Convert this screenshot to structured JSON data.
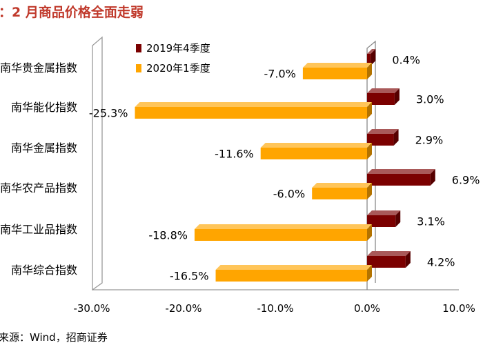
{
  "title": "：2 月商品价格全面走弱",
  "source": "来源：Wind，招商证券",
  "chart_data": {
    "type": "bar",
    "orientation": "horizontal",
    "categories": [
      "南华贵金属指数",
      "南华能化指数",
      "南华金属指数",
      "南华农产品指数",
      "南华工业品指数",
      "南华综合指数"
    ],
    "series": [
      {
        "name": "2019年4季度",
        "values": [
          0.4,
          3.0,
          2.9,
          6.9,
          3.1,
          4.2
        ],
        "labels": [
          "0.4%",
          "3.0%",
          "2.9%",
          "6.9%",
          "3.1%",
          "4.2%"
        ],
        "color": "#7b0000"
      },
      {
        "name": "2020年1季度",
        "values": [
          -7.0,
          -25.3,
          -11.6,
          -6.0,
          -18.8,
          -16.5
        ],
        "labels": [
          "-7.0%",
          "-25.3%",
          "-11.6%",
          "-6.0%",
          "-18.8%",
          "-16.5%"
        ],
        "color": "#ffa500"
      }
    ],
    "xlim": [
      -30,
      10
    ],
    "xticks": [
      "-30.0%",
      "-20.0%",
      "-10.0%",
      "0.0%",
      "10.0%"
    ],
    "legend": "top-left",
    "grid": false
  }
}
